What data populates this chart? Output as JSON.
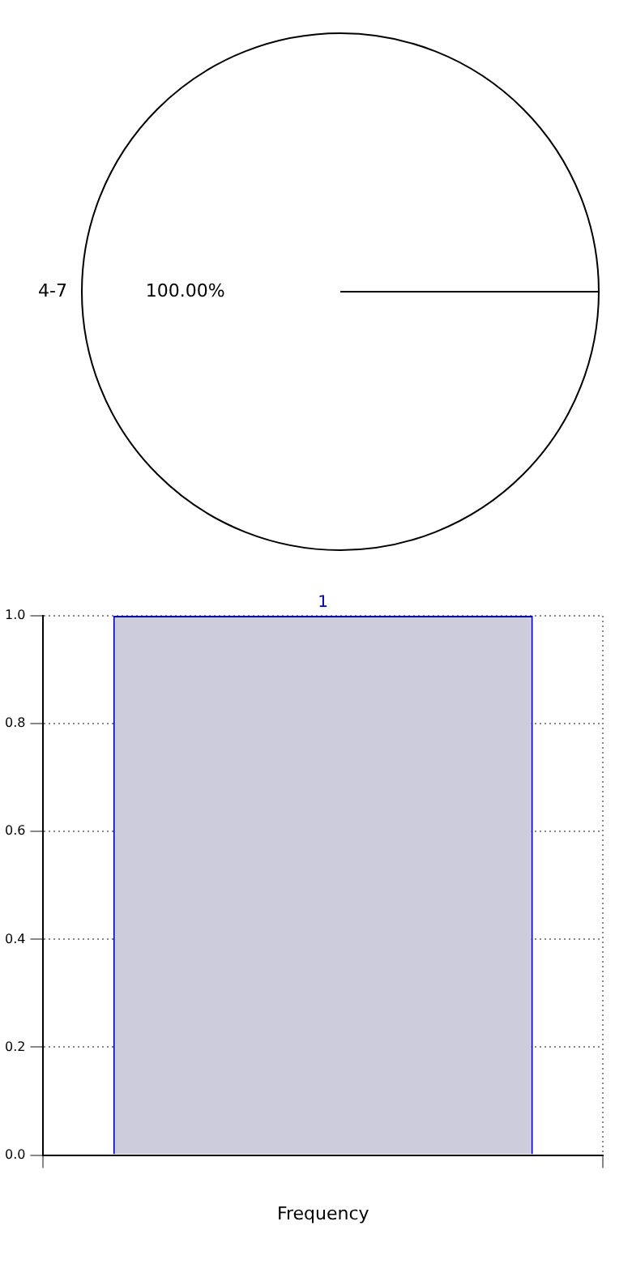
{
  "chart_data": [
    {
      "type": "pie",
      "categories": [
        "4-7"
      ],
      "values": [
        100
      ],
      "colors": [
        "#ffffff"
      ],
      "value_labels": [
        "100.00%"
      ],
      "legend": false
    },
    {
      "type": "bar",
      "categories": [
        null
      ],
      "values": [
        1
      ],
      "color": "#ccccdd",
      "xlabel": "Frequency",
      "ylim": [
        0,
        1
      ],
      "yticks": [
        {
          "value": 0,
          "label": "0.0"
        },
        {
          "value": 0.2,
          "label": "0.2"
        },
        {
          "value": 0.4,
          "label": "0.4"
        },
        {
          "value": 0.6,
          "label": "0.6"
        },
        {
          "value": 0.8,
          "label": "0.8"
        },
        {
          "value": 1,
          "label": "1.0"
        }
      ],
      "grid": true,
      "data_labels": true,
      "legend": false
    }
  ]
}
